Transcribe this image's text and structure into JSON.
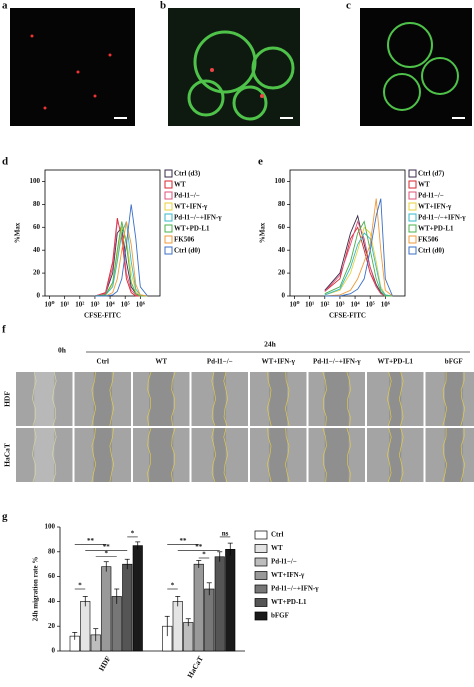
{
  "panel_labels": [
    "a",
    "b",
    "c",
    "d",
    "e",
    "f",
    "g"
  ],
  "wound_assay": {
    "time_labels": [
      "0h",
      "24h"
    ],
    "columns": [
      "Ctrl",
      "WT",
      "Pd-l1−/−",
      "WT+IFN-γ",
      "Pd-l1−/−+IFN-γ",
      "WT+PD-L1",
      "bFGF"
    ],
    "rows": [
      "HDF",
      "HaCaT"
    ]
  },
  "chart_data": [
    {
      "type": "line",
      "xlabel": "CFSE-FITC",
      "ylabel": "%Max",
      "xlog": true,
      "xlim": [
        0.5,
        20000000
      ],
      "ylim": [
        0,
        110
      ],
      "xticks": [
        {
          "value": 1,
          "label": "10⁰"
        },
        {
          "value": 10,
          "label": "10¹"
        },
        {
          "value": 100,
          "label": "10²"
        },
        {
          "value": 1000,
          "label": "10³"
        },
        {
          "value": 10000,
          "label": "10⁴"
        },
        {
          "value": 100000,
          "label": "10⁵"
        },
        {
          "value": 1000000,
          "label": "10⁶"
        }
      ],
      "yticks": [
        0,
        20,
        40,
        60,
        80,
        100
      ],
      "x": [
        1000,
        5000,
        15000,
        30000,
        60000,
        120000,
        250000,
        500000,
        1000000,
        3000000
      ],
      "series": [
        {
          "name": "Ctrl (d3)",
          "color": "#3a2a4a",
          "values": [
            0,
            2,
            20,
            55,
            60,
            30,
            8,
            2,
            0,
            0
          ]
        },
        {
          "name": "WT",
          "color": "#d9262e",
          "values": [
            0,
            3,
            30,
            68,
            50,
            15,
            3,
            0,
            0,
            0
          ]
        },
        {
          "name": "Pd-l1−/−",
          "color": "#e0507a",
          "values": [
            0,
            2,
            25,
            65,
            55,
            20,
            5,
            1,
            0,
            0
          ]
        },
        {
          "name": "WT+IFN-γ",
          "color": "#e8d23a",
          "values": [
            0,
            1,
            10,
            35,
            60,
            50,
            20,
            4,
            0,
            0
          ]
        },
        {
          "name": "Pd-l1−/−+IFN-γ",
          "color": "#35b8c8",
          "values": [
            0,
            1,
            8,
            30,
            55,
            65,
            30,
            6,
            1,
            0
          ]
        },
        {
          "name": "WT+PD-L1",
          "color": "#49b048",
          "values": [
            0,
            1,
            12,
            40,
            65,
            45,
            12,
            2,
            0,
            0
          ]
        },
        {
          "name": "FK506",
          "color": "#f29a38",
          "values": [
            0,
            0,
            3,
            15,
            40,
            65,
            45,
            10,
            1,
            0
          ]
        },
        {
          "name": "Ctrl (d0)",
          "color": "#3a6fc8",
          "values": [
            0,
            0,
            1,
            4,
            15,
            45,
            80,
            50,
            8,
            0
          ]
        }
      ]
    },
    {
      "type": "line",
      "xlabel": "CFSE-FITC",
      "ylabel": "%Max",
      "xlog": true,
      "xlim": [
        0.5,
        20000000
      ],
      "ylim": [
        0,
        110
      ],
      "xticks": [
        {
          "value": 1,
          "label": "10⁰"
        },
        {
          "value": 10,
          "label": "10¹"
        },
        {
          "value": 100,
          "label": "10²"
        },
        {
          "value": 1000,
          "label": "10³"
        },
        {
          "value": 10000,
          "label": "10⁴"
        },
        {
          "value": 100000,
          "label": "10⁵"
        },
        {
          "value": 1000000,
          "label": "10⁶"
        }
      ],
      "yticks": [
        0,
        20,
        40,
        60,
        80,
        100
      ],
      "x": [
        100,
        1000,
        5000,
        15000,
        40000,
        100000,
        250000,
        500000,
        1000000,
        3000000
      ],
      "series": [
        {
          "name": "Ctrl (d7)",
          "color": "#3a2a4a",
          "values": [
            5,
            20,
            55,
            70,
            45,
            25,
            10,
            3,
            0,
            0
          ]
        },
        {
          "name": "WT",
          "color": "#d9262e",
          "values": [
            4,
            15,
            50,
            60,
            40,
            20,
            8,
            2,
            0,
            0
          ]
        },
        {
          "name": "Pd-l1−/−",
          "color": "#e0507a",
          "values": [
            4,
            18,
            45,
            65,
            50,
            25,
            8,
            2,
            0,
            0
          ]
        },
        {
          "name": "WT+IFN-γ",
          "color": "#e8d23a",
          "values": [
            1,
            5,
            20,
            40,
            60,
            55,
            30,
            8,
            1,
            0
          ]
        },
        {
          "name": "Pd-l1−/−+IFN-γ",
          "color": "#35b8c8",
          "values": [
            1,
            6,
            25,
            45,
            55,
            50,
            25,
            6,
            1,
            0
          ]
        },
        {
          "name": "WT+PD-L1",
          "color": "#49b048",
          "values": [
            2,
            8,
            30,
            55,
            65,
            40,
            15,
            4,
            0,
            0
          ]
        },
        {
          "name": "FK506",
          "color": "#f29a38",
          "values": [
            0,
            1,
            5,
            15,
            30,
            45,
            85,
            40,
            5,
            0
          ]
        },
        {
          "name": "Ctrl (d0)",
          "color": "#3a6fc8",
          "values": [
            0,
            0,
            2,
            6,
            15,
            40,
            70,
            85,
            15,
            0
          ]
        }
      ]
    },
    {
      "type": "bar",
      "ylabel": "24h migration rate %",
      "categories": [
        "HDF",
        "HaCaT"
      ],
      "ylim": [
        0,
        100
      ],
      "yticks": [
        0,
        20,
        40,
        60,
        80,
        100
      ],
      "series": [
        {
          "name": "Ctrl",
          "color": "#ffffff",
          "values": [
            12,
            20
          ],
          "errors": [
            3,
            8
          ]
        },
        {
          "name": "WT",
          "color": "#e4e4e4",
          "values": [
            40,
            40
          ],
          "errors": [
            4,
            4
          ]
        },
        {
          "name": "Pd-l1−/−",
          "color": "#bdbdbd",
          "values": [
            13,
            23
          ],
          "errors": [
            5,
            3
          ]
        },
        {
          "name": "WT+IFN-γ",
          "color": "#999999",
          "values": [
            68,
            70
          ],
          "errors": [
            4,
            3
          ]
        },
        {
          "name": "Pd-l1−/−+IFN-γ",
          "color": "#777777",
          "values": [
            44,
            50
          ],
          "errors": [
            6,
            5
          ]
        },
        {
          "name": "WT+PD-L1",
          "color": "#555555",
          "values": [
            70,
            76
          ],
          "errors": [
            4,
            4
          ]
        },
        {
          "name": "bFGF",
          "color": "#1a1a1a",
          "values": [
            85,
            82
          ],
          "errors": [
            3,
            5
          ]
        }
      ],
      "annotations": [
        "*",
        "**",
        "**",
        "*",
        "*",
        "*",
        "**",
        "**",
        "*",
        "ns"
      ]
    }
  ]
}
